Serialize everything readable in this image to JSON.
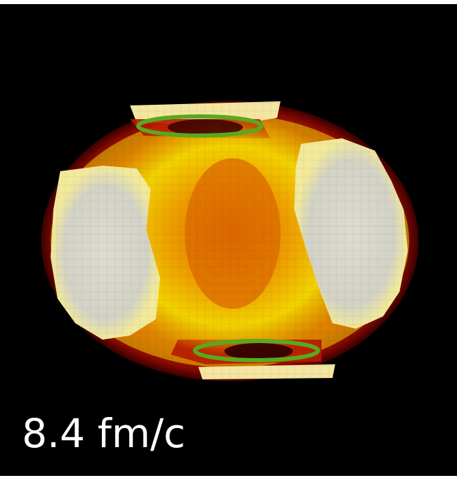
{
  "timestamp_label": "8.4 fm/c",
  "colors": {
    "background": "#000000",
    "label": "#ffffff",
    "ring": "#5aa81e",
    "hot_core": "#d0d0c8",
    "warm": "#e8c400",
    "mid": "#e06a00",
    "cool": "#b01800"
  }
}
